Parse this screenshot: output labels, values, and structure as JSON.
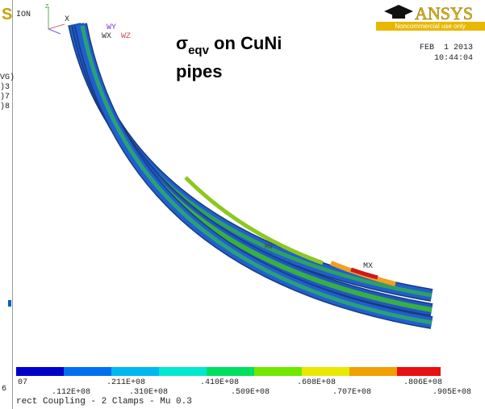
{
  "header": {
    "view_label": "ION",
    "logo": "ANSYS",
    "license": "Noncommercial use only",
    "date": "FEB  1 2013",
    "time": "10:44:04"
  },
  "triad": {
    "z": "Z",
    "x": "X",
    "wy": "WY",
    "wx": "WX",
    "wz": "WZ"
  },
  "annotation": {
    "symbol": "σ",
    "subscript": "eqv",
    "rest": " on CuNi",
    "line2": "pipes"
  },
  "left_panel": {
    "lines": [
      "VG)",
      ")3",
      ")7",
      ")8"
    ],
    "logo_fragment": "S",
    "bottom_fragment": "6"
  },
  "markers": {
    "min": "MN",
    "max": "MX"
  },
  "legend": {
    "labels": [
      "07",
      ".112E+08",
      ".211E+08",
      ".310E+08",
      ".410E+08",
      ".509E+08",
      ".608E+08",
      ".707E+08",
      ".806E+08",
      ".905E+08"
    ]
  },
  "footer": "rect Coupling - 2 Clamps - Mu 0.3"
}
